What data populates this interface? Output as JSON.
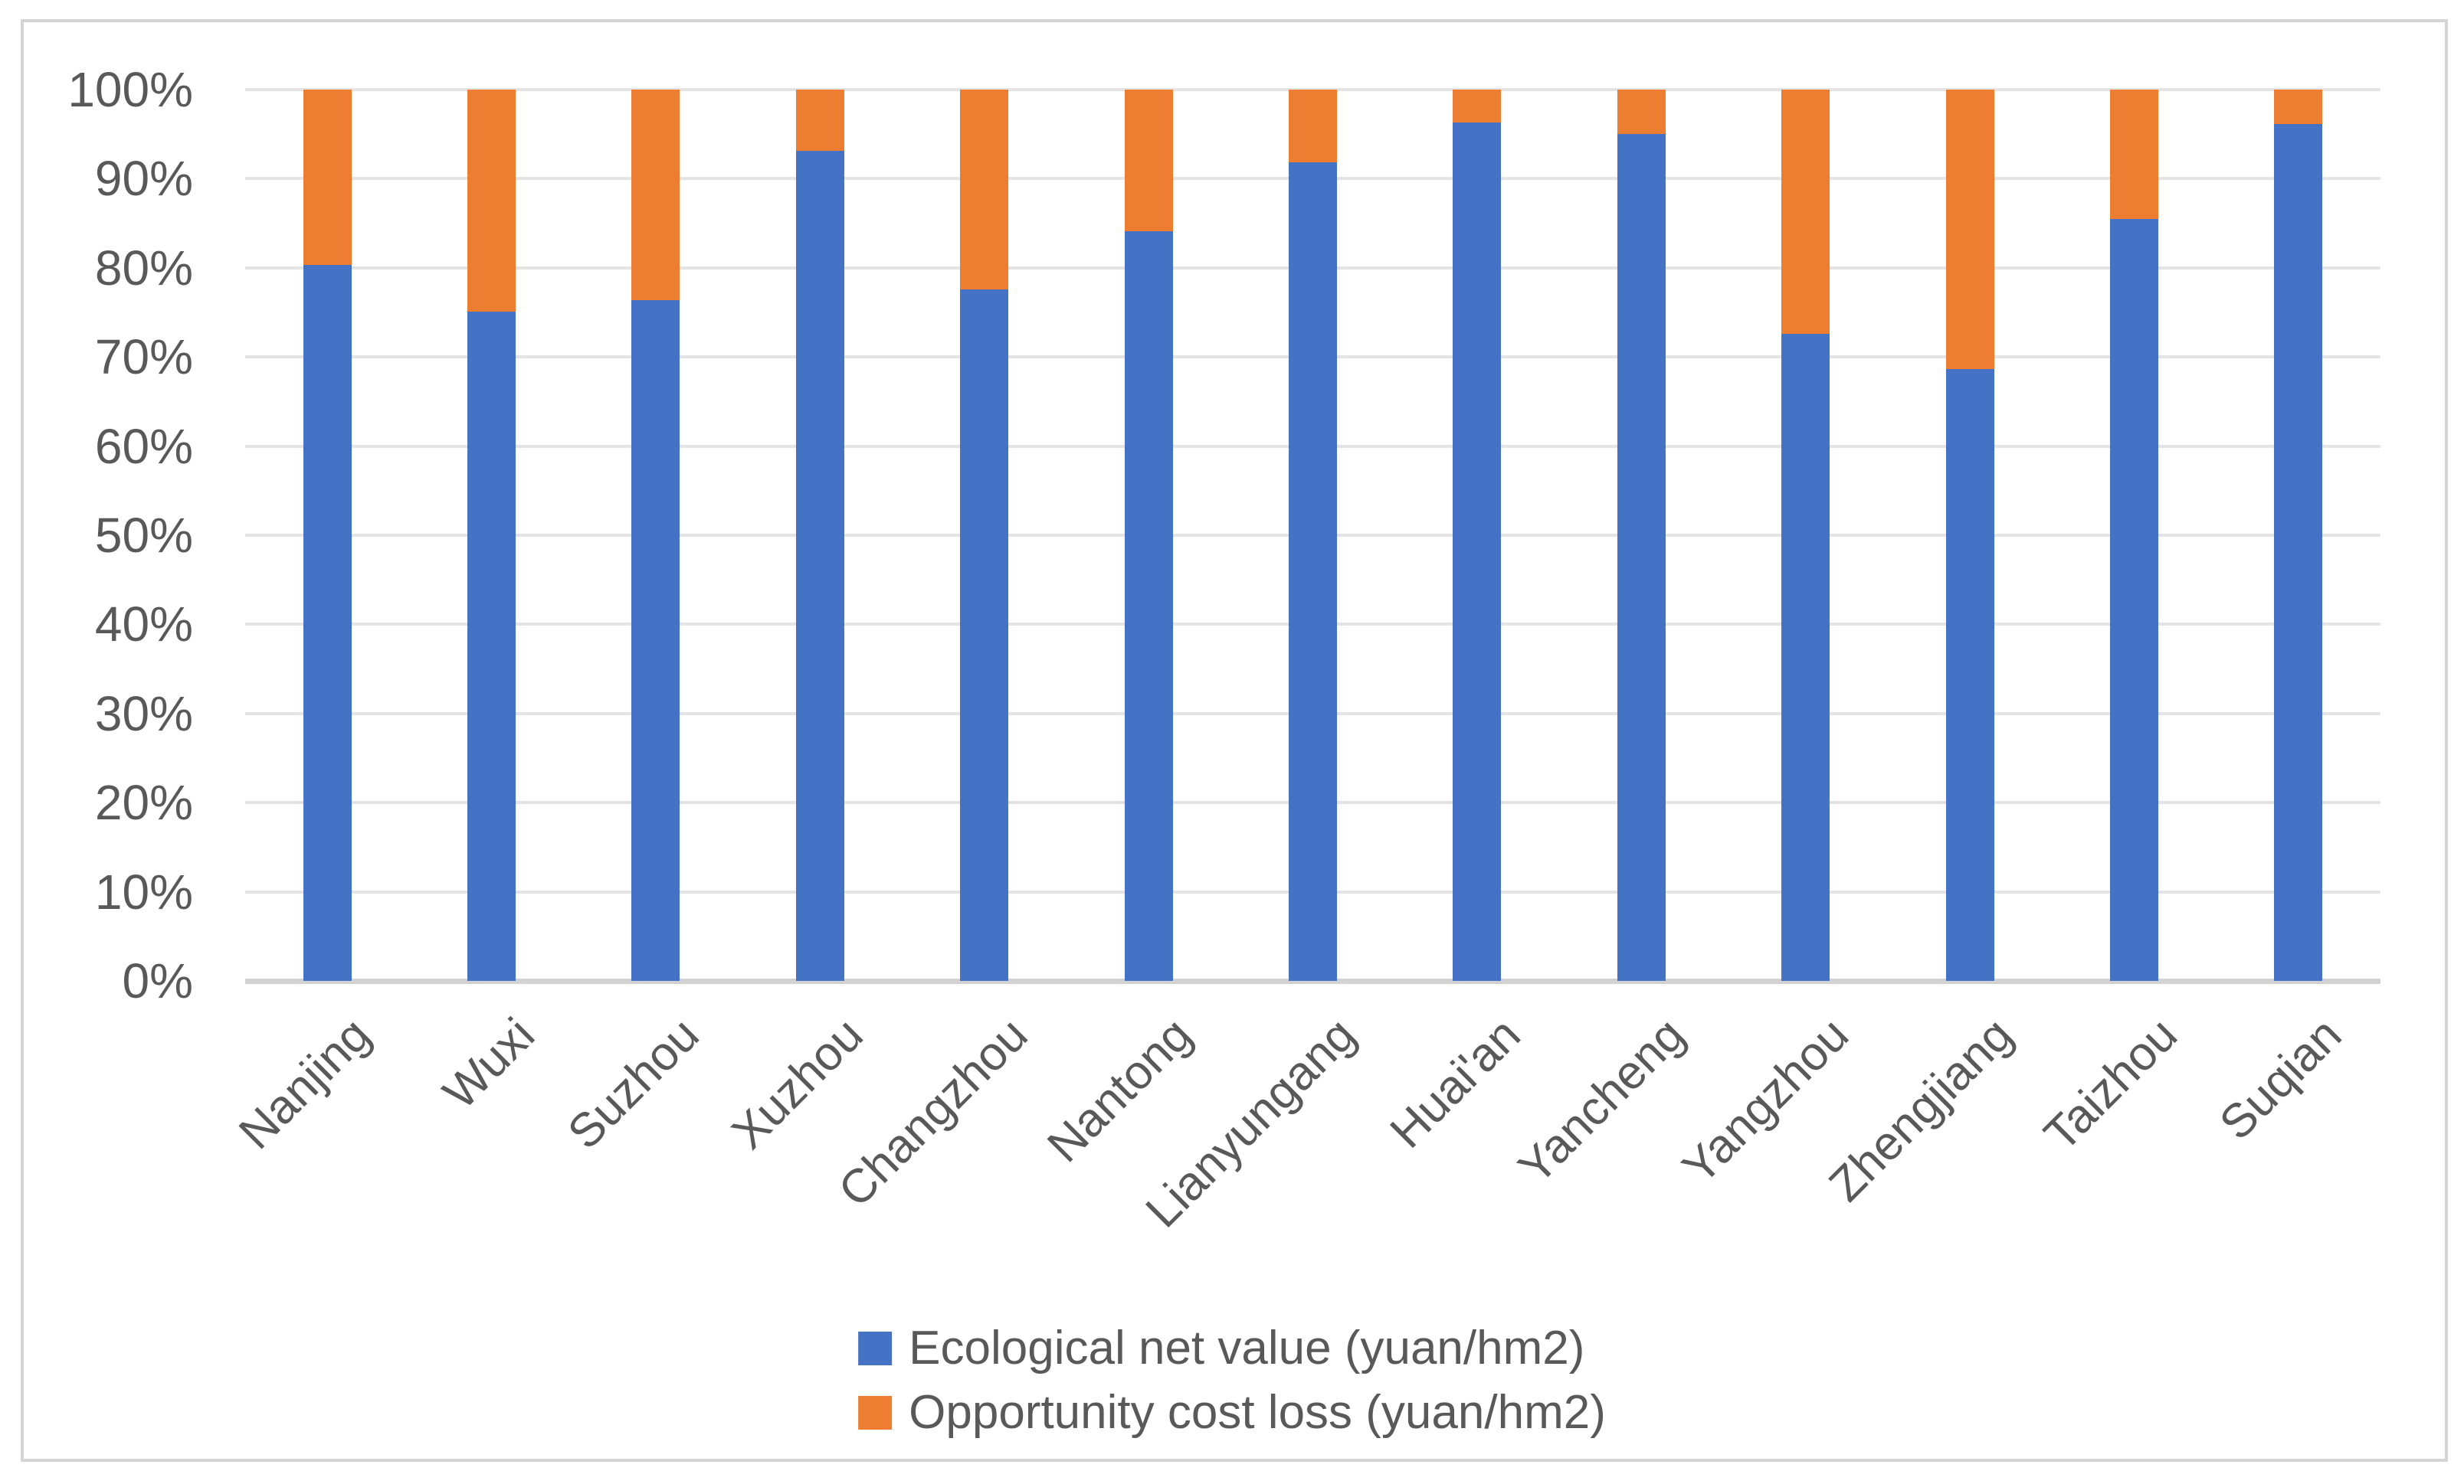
{
  "figure": {
    "background": "#FFFFFF",
    "border_color": "#D5D5D5",
    "text_color": "#595959",
    "gridline_color": "#E4E4E4",
    "axis_line_color": "#D2D2D2"
  },
  "chart_data": {
    "type": "bar",
    "stacking": "percent",
    "title": "",
    "xlabel": "",
    "ylabel": "",
    "categories": [
      "Nanjing",
      "Wuxi",
      "Suzhou",
      "Xuzhou",
      "Changzhou",
      "Nantong",
      "Lianyungang",
      "Huai'an",
      "Yancheng",
      "Yangzhou",
      "Zhengjiang",
      "Taizhou",
      "Suqian"
    ],
    "series": [
      {
        "name": "Ecological net value (yuan/hm2)",
        "color": "#4472C4",
        "share_percent": [
          80.3,
          75.1,
          76.4,
          93.1,
          77.6,
          84.1,
          91.8,
          96.3,
          95.0,
          72.6,
          68.6,
          85.5,
          96.1
        ]
      },
      {
        "name": "Opportunity cost loss (yuan/hm2)",
        "color": "#ED7D31",
        "share_percent": [
          19.7,
          24.9,
          23.6,
          6.9,
          22.4,
          15.9,
          8.2,
          3.7,
          5.0,
          27.4,
          31.4,
          14.5,
          3.9
        ]
      }
    ],
    "y_axis": {
      "min": 0,
      "max": 100,
      "step": 10,
      "tick_labels": [
        "0%",
        "10%",
        "20%",
        "30%",
        "40%",
        "50%",
        "60%",
        "70%",
        "80%",
        "90%",
        "100%"
      ],
      "grid": true
    },
    "legend_position": "bottom-center"
  }
}
